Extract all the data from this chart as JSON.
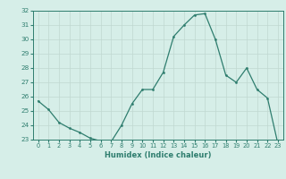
{
  "x": [
    0,
    1,
    2,
    3,
    4,
    5,
    6,
    7,
    8,
    9,
    10,
    11,
    12,
    13,
    14,
    15,
    16,
    17,
    18,
    19,
    20,
    21,
    22,
    23
  ],
  "y": [
    25.7,
    25.1,
    24.2,
    23.8,
    23.5,
    23.1,
    22.9,
    22.85,
    24.0,
    25.5,
    26.5,
    26.5,
    27.7,
    30.2,
    31.0,
    31.7,
    31.8,
    30.0,
    27.5,
    27.0,
    28.0,
    26.5,
    25.9,
    22.7
  ],
  "ylim": [
    23,
    32
  ],
  "yticks": [
    23,
    24,
    25,
    26,
    27,
    28,
    29,
    30,
    31,
    32
  ],
  "xticks": [
    0,
    1,
    2,
    3,
    4,
    5,
    6,
    7,
    8,
    9,
    10,
    11,
    12,
    13,
    14,
    15,
    16,
    17,
    18,
    19,
    20,
    21,
    22,
    23
  ],
  "xlabel": "Humidex (Indice chaleur)",
  "line_color": "#2e7d6e",
  "marker_color": "#2e7d6e",
  "bg_color": "#d6eee8",
  "grid_color": "#c0d8d0",
  "tick_color": "#2e7d6e",
  "label_color": "#2e7d6e"
}
